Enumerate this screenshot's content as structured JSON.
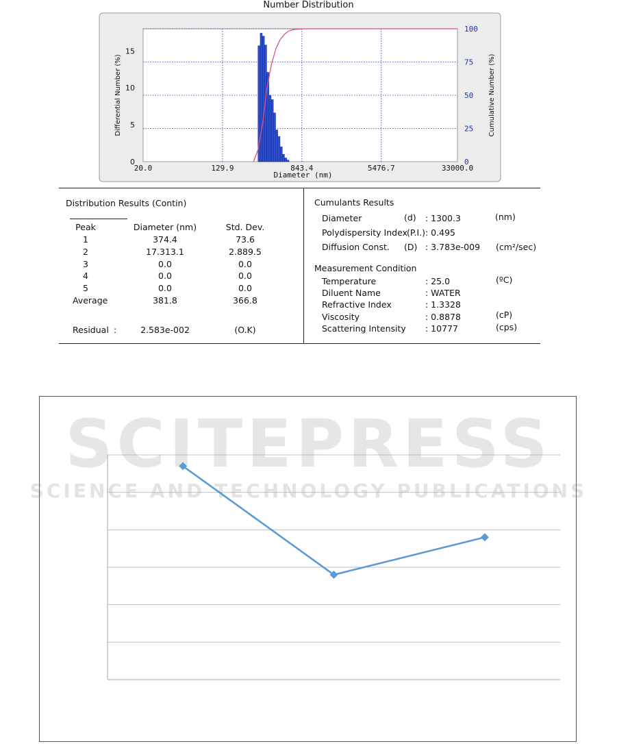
{
  "chart_data": [
    {
      "type": "bar",
      "title": "Number Distribution",
      "xlabel": "Diameter (nm)",
      "ylabel": "Differential Number (%)",
      "y2label": "Cumulative Number (%)",
      "x_scale": "log",
      "xlim": [
        20.0,
        33000.0
      ],
      "ylim": [
        0,
        18
      ],
      "y2lim": [
        0,
        100
      ],
      "x_ticks": [
        "20.0",
        "129.9",
        "843.4",
        "5476.7",
        "33000.0"
      ],
      "y_ticks": [
        "0",
        "5",
        "10",
        "15"
      ],
      "y2_ticks": [
        "0",
        "25",
        "50",
        "75",
        "100"
      ],
      "grid": true,
      "series": [
        {
          "kind": "bar",
          "x": [
            300,
            316,
            333,
            351,
            370,
            390,
            411,
            433,
            457,
            481,
            507,
            535,
            563,
            594
          ],
          "values": [
            15.7,
            17.4,
            17.0,
            15.8,
            12.1,
            9.0,
            8.4,
            6.6,
            4.3,
            3.4,
            2.0,
            1.0,
            0.5,
            0.2
          ],
          "color": "#2b4fd6"
        },
        {
          "kind": "line",
          "x": [
            270,
            300,
            333,
            370,
            411,
            457,
            507,
            563,
            625,
            700,
            900,
            33000
          ],
          "values": [
            0,
            9,
            28,
            55,
            73,
            85,
            92,
            96,
            98.5,
            99.5,
            100,
            100
          ],
          "axis": "right",
          "color": "#e0507a"
        }
      ]
    },
    {
      "type": "line",
      "x": [
        1,
        2,
        3
      ],
      "ylim": [
        0,
        6
      ],
      "grid": true,
      "series": [
        {
          "values": [
            5.7,
            2.8,
            3.8
          ],
          "color": "#5b9bd5"
        }
      ]
    }
  ],
  "results": {
    "left_title": "Distribution Results (Contin)",
    "headers": [
      "Peak",
      "Diameter (nm)",
      "Std. Dev."
    ],
    "rows": [
      [
        "1",
        "374.4",
        "73.6"
      ],
      [
        "2",
        "17.313.1",
        "2.889.5"
      ],
      [
        "3",
        "0.0",
        "0.0"
      ],
      [
        "4",
        "0.0",
        "0.0"
      ],
      [
        "5",
        "0.0",
        "0.0"
      ],
      [
        "Average",
        "381.8",
        "366.8"
      ]
    ],
    "residual_label": "Residual",
    "residual_colon": ":",
    "residual_value": "2.583e-002",
    "residual_status": "(O.K)",
    "cumulants_title": "Cumulants Results",
    "cumulants": [
      {
        "label": "Diameter",
        "sym": "(d)",
        "value": ": 1300.3",
        "unit": "(nm)"
      },
      {
        "label": "Polydispersity Index",
        "sym": "(P.I.)",
        "value": ": 0.495",
        "unit": ""
      },
      {
        "label": "Diffusion Const.",
        "sym": "(D)",
        "value": ": 3.783e-009",
        "unit": "(cm²/sec)"
      }
    ],
    "conditions_title": "Measurement Condition",
    "conditions": [
      {
        "label": "Temperature",
        "value": ": 25.0",
        "unit": "(ºC)"
      },
      {
        "label": "Diluent Name",
        "value": ": WATER",
        "unit": ""
      },
      {
        "label": "Refractive Index",
        "value": ": 1.3328",
        "unit": ""
      },
      {
        "label": "Viscosity",
        "value": ": 0.8878",
        "unit": "(cP)"
      },
      {
        "label": "Scattering Intensity",
        "value": ": 10777",
        "unit": "(cps)"
      }
    ]
  },
  "watermark": {
    "main": "SCITEPRESS",
    "sub": "SCIENCE AND TECHNOLOGY PUBLICATIONS"
  }
}
